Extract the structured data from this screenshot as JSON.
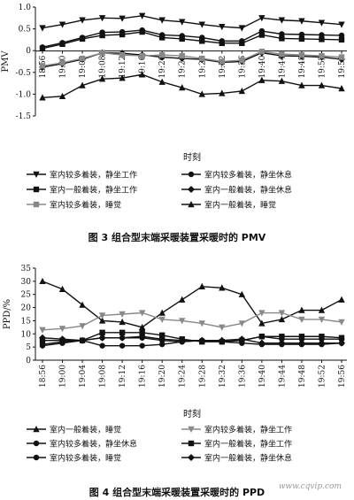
{
  "figure3": {
    "caption": "图 3   组合型末端采暖装置采暖时的 PMV",
    "chart_data": {
      "type": "line",
      "categories": [
        "18:56",
        "19:00",
        "19:04",
        "19:08",
        "19:12",
        "19:16",
        "19:20",
        "19:24",
        "19:28",
        "19:32",
        "19:36",
        "19:40",
        "19:44",
        "19:48",
        "19:52",
        "19:56"
      ],
      "x_tick_labels": [
        "18:56",
        "19:00",
        "19:04",
        "19:08",
        "19:12",
        "19:16",
        "19:20",
        "19:24",
        "19:28",
        "19:32",
        "19:36",
        "19:40",
        "19:44",
        "19:48",
        "19:52",
        "19:56"
      ],
      "ylim": [
        -1.5,
        1.0
      ],
      "yticks": [
        "1.0",
        "0.5",
        "0",
        "-0.5",
        "-1.0",
        "-1.5"
      ],
      "ytick_values": [
        1.0,
        0.5,
        0,
        -0.5,
        -1.0,
        -1.5
      ],
      "xlabel": "时刻",
      "ylabel": "PMV",
      "grid": false,
      "legend_position": "bottom",
      "series": [
        {
          "name": "室内较多着装，静坐工作",
          "marker": "tri-down",
          "color": "#111111",
          "values": [
            0.52,
            0.6,
            0.7,
            0.75,
            0.74,
            0.8,
            0.7,
            0.66,
            0.6,
            0.55,
            0.52,
            0.75,
            0.7,
            0.68,
            0.64,
            0.6
          ]
        },
        {
          "name": "室内较多着装，静坐休息",
          "marker": "dot",
          "color": "#111111",
          "values": [
            0.08,
            0.18,
            0.3,
            0.42,
            0.43,
            0.47,
            0.36,
            0.34,
            0.3,
            0.22,
            0.22,
            0.45,
            0.38,
            0.37,
            0.36,
            0.35
          ]
        },
        {
          "name": "室内一般着装，静坐工作",
          "marker": "square",
          "color": "#111111",
          "values": [
            0.05,
            0.15,
            0.27,
            0.35,
            0.37,
            0.43,
            0.3,
            0.27,
            0.22,
            0.17,
            0.17,
            0.36,
            0.28,
            0.27,
            0.26,
            0.25
          ]
        },
        {
          "name": "室内一般着装，静坐休息",
          "marker": "diamond",
          "color": "#111111",
          "values": [
            -0.38,
            -0.3,
            -0.2,
            -0.05,
            -0.06,
            -0.1,
            -0.15,
            -0.18,
            -0.2,
            -0.27,
            -0.25,
            -0.05,
            -0.12,
            -0.13,
            -0.15,
            -0.2
          ]
        },
        {
          "name": "室内较多着装，睡觉",
          "marker": "square",
          "color": "#888888",
          "values": [
            -0.35,
            -0.28,
            -0.18,
            -0.05,
            -0.1,
            -0.12,
            -0.1,
            -0.12,
            -0.18,
            -0.25,
            -0.22,
            -0.02,
            -0.08,
            -0.1,
            -0.12,
            -0.15
          ]
        },
        {
          "name": "室内一般着装，睡觉",
          "marker": "triangle",
          "color": "#111111",
          "values": [
            -1.08,
            -1.05,
            -0.8,
            -0.65,
            -0.63,
            -0.55,
            -0.72,
            -0.85,
            -1.0,
            -0.98,
            -0.93,
            -0.68,
            -0.7,
            -0.8,
            -0.8,
            -0.87
          ]
        }
      ]
    }
  },
  "figure4": {
    "caption": "图 4   组合型末端采暖装置采暖时的 PPD",
    "chart_data": {
      "type": "line",
      "categories": [
        "18:56",
        "19:00",
        "19:04",
        "19:08",
        "19:12",
        "19:16",
        "19:20",
        "19:24",
        "19:28",
        "19:32",
        "19:36",
        "19:40",
        "19:44",
        "19:48",
        "19:52",
        "19:56"
      ],
      "x_tick_labels": [
        "18:56",
        "19:00",
        "19:04",
        "19:08",
        "19:12",
        "19:16",
        "19:20",
        "19:24",
        "19:28",
        "19:32",
        "19:36",
        "19:40",
        "19:44",
        "19:48",
        "19:52",
        "19:56"
      ],
      "ylim": [
        0,
        35
      ],
      "yticks": [
        "35",
        "30",
        "25",
        "20",
        "15",
        "10",
        "5",
        "0"
      ],
      "ytick_values": [
        35,
        30,
        25,
        20,
        15,
        10,
        5,
        0
      ],
      "xlabel": "时刻",
      "ylabel": "PPD/%",
      "grid": false,
      "legend_position": "bottom",
      "series": [
        {
          "name": "室内一般着装，睡觉",
          "marker": "triangle",
          "color": "#111111",
          "values": [
            30,
            27,
            21,
            15,
            14.5,
            12.5,
            18,
            23,
            28,
            27.5,
            25,
            14,
            15.5,
            19,
            19,
            23
          ]
        },
        {
          "name": "室内较多着装，静坐工作",
          "marker": "tri-down",
          "color": "#888888",
          "values": [
            11.5,
            12,
            13,
            17,
            17.5,
            18,
            15.5,
            15,
            14,
            12.5,
            14,
            18,
            18,
            15.5,
            15.5,
            14.5
          ]
        },
        {
          "name": "室内较多着装，静坐休息",
          "marker": "dot",
          "color": "#111111",
          "values": [
            6,
            7,
            7.5,
            8.5,
            8.5,
            8.5,
            7.5,
            7,
            7.5,
            7,
            7.5,
            9,
            8,
            8,
            8,
            8
          ]
        },
        {
          "name": "室内一般着装，静坐工作",
          "marker": "square",
          "color": "#111111",
          "values": [
            7.5,
            7.5,
            7.5,
            10.5,
            10.5,
            10.5,
            9.5,
            8,
            7,
            7,
            7.5,
            9,
            9,
            9,
            9,
            8.5
          ]
        },
        {
          "name": "室内较多着装，睡觉",
          "marker": "dot",
          "color": "#111111",
          "values": [
            5.5,
            6.5,
            7.5,
            5.5,
            5.5,
            5.5,
            6,
            7,
            7.5,
            7,
            6.5,
            6,
            6,
            6,
            6,
            6.5
          ]
        },
        {
          "name": "室内一般着装，静坐休息",
          "marker": "diamond",
          "color": "#111111",
          "values": [
            8.5,
            8,
            7.5,
            8.5,
            8.5,
            9,
            8,
            7.5,
            7.5,
            7.5,
            8,
            6.5,
            6.5,
            6.5,
            6.5,
            6.5
          ]
        }
      ]
    }
  },
  "watermark": "www.cqvip.com"
}
